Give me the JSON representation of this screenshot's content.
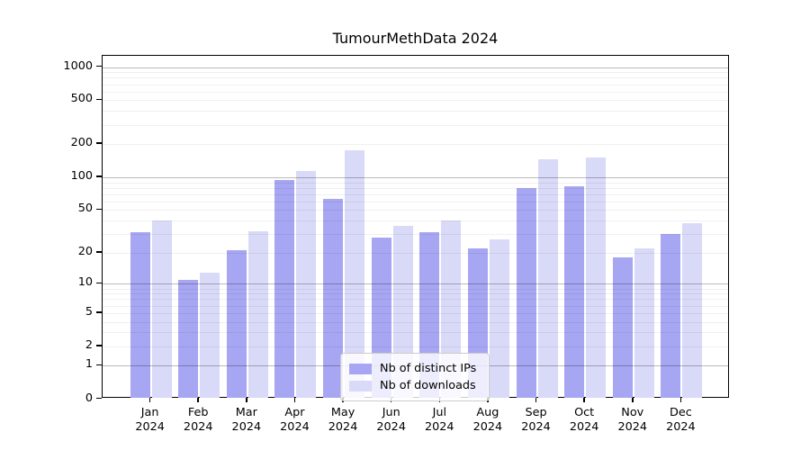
{
  "title": "TumourMethData 2024",
  "chart_data": {
    "type": "bar",
    "title": "TumourMethData 2024",
    "categories": [
      "Jan",
      "Feb",
      "Mar",
      "Apr",
      "May",
      "Jun",
      "Jul",
      "Aug",
      "Sep",
      "Oct",
      "Nov",
      "Dec"
    ],
    "year": "2024",
    "series": [
      {
        "name": "Nb of distinct IPs",
        "color": "#a6a6f2",
        "values": [
          31,
          11,
          21,
          94,
          63,
          28,
          31,
          22,
          80,
          83,
          18,
          30
        ]
      },
      {
        "name": "Nb of downloads",
        "color": "#d9d9f8",
        "values": [
          40,
          13,
          32,
          114,
          175,
          36,
          40,
          27,
          146,
          152,
          22,
          38
        ]
      }
    ],
    "xlabel": "",
    "ylabel": "",
    "yscale": "log1p",
    "yticks": [
      0,
      1,
      2,
      5,
      10,
      20,
      50,
      100,
      200,
      500,
      1000
    ],
    "ylim": [
      0,
      1270
    ],
    "grid": "horizontal major (1,10,100,1000) dark + log minors faint, drawn above bars",
    "legend_position": "lower center"
  },
  "colors": {
    "bar_dark": "#a6a6f2",
    "bar_light": "#d9d9f8",
    "axis": "#000000",
    "grid_major": "#bababa",
    "grid_minor": "#ededed",
    "background": "#ffffff"
  }
}
